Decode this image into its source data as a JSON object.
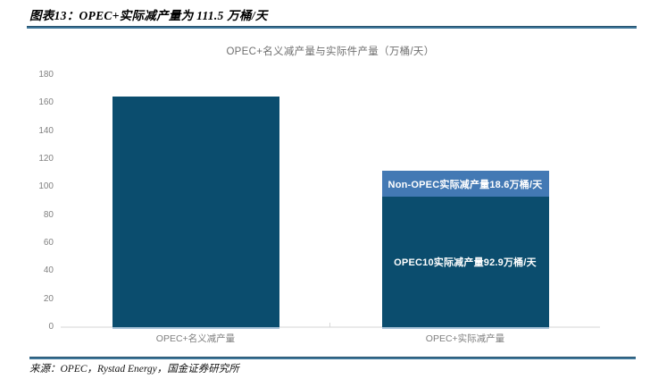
{
  "header": {
    "title": "图表13：OPEC+实际减产量为 111.5 万桶/天"
  },
  "footer": {
    "source": "来源：OPEC，Rystad Energy，国金证券研究所"
  },
  "colors": {
    "dark_bar": "#0B4D6E",
    "light_bar": "#4379B4",
    "divider_line": "#3E7598",
    "axis_line": "#EAEAEA",
    "tick_text": "#7F7F7F",
    "chart_title_text": "#6F6F6F",
    "bar_label_text": "#FFFFFF"
  },
  "chart_data": {
    "type": "bar",
    "stacked": true,
    "title": "OPEC+名义减产量与实际件产量（万桶/天）",
    "categories": [
      "OPEC+名义减产量",
      "OPEC+实际减产量"
    ],
    "series": [
      {
        "name": "OPEC10实际减产量",
        "color": "#0B4D6E",
        "values": [
          165,
          92.9
        ]
      },
      {
        "name": "Non-OPEC实际减产量",
        "color": "#4379B4",
        "values": [
          0,
          18.6
        ]
      }
    ],
    "bars": [
      {
        "category": "OPEC+名义减产量",
        "segments": [
          {
            "name": "opec-plus-nominal-cut",
            "value": 165,
            "color": "#0B4D6E",
            "label": ""
          }
        ]
      },
      {
        "category": "OPEC+实际减产量",
        "segments": [
          {
            "name": "opec10-actual-cut",
            "value": 92.9,
            "color": "#0B4D6E",
            "label": "OPEC10实际减产量92.9万桶/天"
          },
          {
            "name": "non-opec-actual-cut",
            "value": 18.6,
            "color": "#4379B4",
            "label": "Non-OPEC实际减产量18.6万桶/天"
          }
        ]
      }
    ],
    "xlabel": "",
    "ylabel": "",
    "ylim": [
      0,
      180
    ],
    "yticks": [
      0,
      20,
      40,
      60,
      80,
      100,
      120,
      140,
      160,
      180
    ],
    "grid": false,
    "legend": "none"
  }
}
